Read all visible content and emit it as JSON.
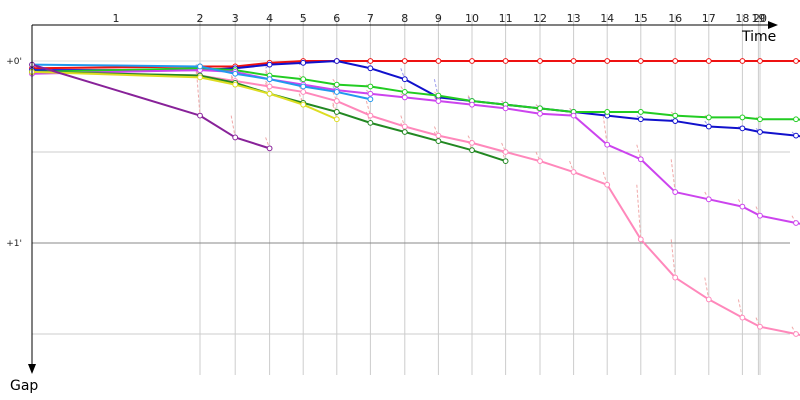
{
  "chart_data": {
    "type": "line",
    "xlabel": "Time",
    "ylabel": "Gap",
    "x_categories": [
      "1",
      "2",
      "3",
      "4",
      "5",
      "6",
      "7",
      "8",
      "9",
      "10",
      "11",
      "12",
      "13",
      "14",
      "15",
      "16",
      "17",
      "18",
      "19",
      "20"
    ],
    "y_tick_labels": [
      "+0'",
      "+1'"
    ],
    "ylim_minutes": [
      -0.05,
      1.75
    ],
    "x_range_seconds": [
      0,
      1150
    ],
    "x_axis_arrow": "right",
    "y_axis_arrow": "down",
    "grid": true,
    "legend": "none",
    "lap_times_seconds": [
      0,
      210,
      254,
      297,
      339,
      381,
      423,
      466,
      508,
      550,
      592,
      635,
      677,
      719,
      761,
      804,
      846,
      888,
      908,
      910
    ],
    "series": [
      {
        "color": "#ee1111",
        "x": [
          0,
          210,
          254,
          297,
          339,
          381,
          423,
          466,
          508,
          550,
          592,
          635,
          677,
          719,
          761,
          804,
          846,
          888,
          910,
          955,
          1000
        ],
        "y": [
          0.04,
          0.03,
          0.03,
          0.01,
          0,
          0,
          0,
          0,
          0,
          0,
          0,
          0,
          0,
          0,
          0,
          0,
          0,
          0,
          0,
          0,
          0
        ]
      },
      {
        "color": "#1111cc",
        "x": [
          0,
          210,
          254,
          297,
          339,
          381,
          423,
          466,
          508,
          550,
          592,
          635,
          677,
          719,
          761,
          804,
          846,
          888,
          910,
          955,
          1000
        ],
        "y": [
          0.05,
          0.05,
          0.04,
          0.02,
          0.01,
          0,
          0.04,
          0.1,
          0.2,
          0.22,
          0.24,
          0.26,
          0.28,
          0.3,
          0.32,
          0.33,
          0.36,
          0.37,
          0.39,
          0.41,
          0.44
        ]
      },
      {
        "color": "#22cc22",
        "x": [
          0,
          210,
          254,
          297,
          339,
          381,
          423,
          466,
          508,
          550,
          592,
          635,
          677,
          719,
          761,
          804,
          846,
          888,
          910,
          955,
          1000
        ],
        "y": [
          0.06,
          0.04,
          0.05,
          0.08,
          0.1,
          0.13,
          0.14,
          0.17,
          0.19,
          0.22,
          0.24,
          0.26,
          0.28,
          0.28,
          0.28,
          0.3,
          0.31,
          0.31,
          0.32,
          0.32,
          0.34
        ]
      },
      {
        "color": "#cc44ee",
        "x": [
          0,
          210,
          254,
          297,
          339,
          381,
          423,
          466,
          508,
          550,
          592,
          635,
          677,
          719,
          761,
          804,
          846,
          888,
          910,
          955,
          1000
        ],
        "y": [
          0.07,
          0.05,
          0.06,
          0.1,
          0.13,
          0.16,
          0.18,
          0.2,
          0.22,
          0.24,
          0.26,
          0.29,
          0.3,
          0.46,
          0.54,
          0.72,
          0.76,
          0.8,
          0.85,
          0.89,
          0.93
        ]
      },
      {
        "color": "#ff88bb",
        "x": [
          0,
          210,
          254,
          297,
          339,
          381,
          423,
          466,
          508,
          550,
          592,
          635,
          677,
          719,
          761,
          804,
          846,
          888,
          910,
          955,
          1000
        ],
        "y": [
          0.06,
          0.08,
          0.11,
          0.14,
          0.17,
          0.22,
          0.3,
          0.36,
          0.41,
          0.45,
          0.5,
          0.55,
          0.61,
          0.68,
          0.98,
          1.19,
          1.31,
          1.41,
          1.46,
          1.5,
          1.55
        ]
      },
      {
        "color": "#228822",
        "x": [
          0,
          210,
          254,
          297,
          339,
          381,
          423,
          466,
          508,
          550,
          592
        ],
        "y": [
          0.06,
          0.08,
          0.12,
          0.18,
          0.23,
          0.28,
          0.34,
          0.39,
          0.44,
          0.49,
          0.55
        ]
      },
      {
        "color": "#2299ee",
        "x": [
          0,
          210,
          254,
          297,
          339,
          381,
          423
        ],
        "y": [
          0.02,
          0.03,
          0.07,
          0.1,
          0.14,
          0.17,
          0.21
        ]
      },
      {
        "color": "#dddd22",
        "x": [
          0,
          210,
          254,
          297,
          339,
          381
        ],
        "y": [
          0.06,
          0.09,
          0.13,
          0.18,
          0.24,
          0.32
        ]
      },
      {
        "color": "#882299",
        "x": [
          0,
          210,
          254,
          297
        ],
        "y": [
          0.02,
          0.3,
          0.42,
          0.48
        ]
      }
    ]
  }
}
